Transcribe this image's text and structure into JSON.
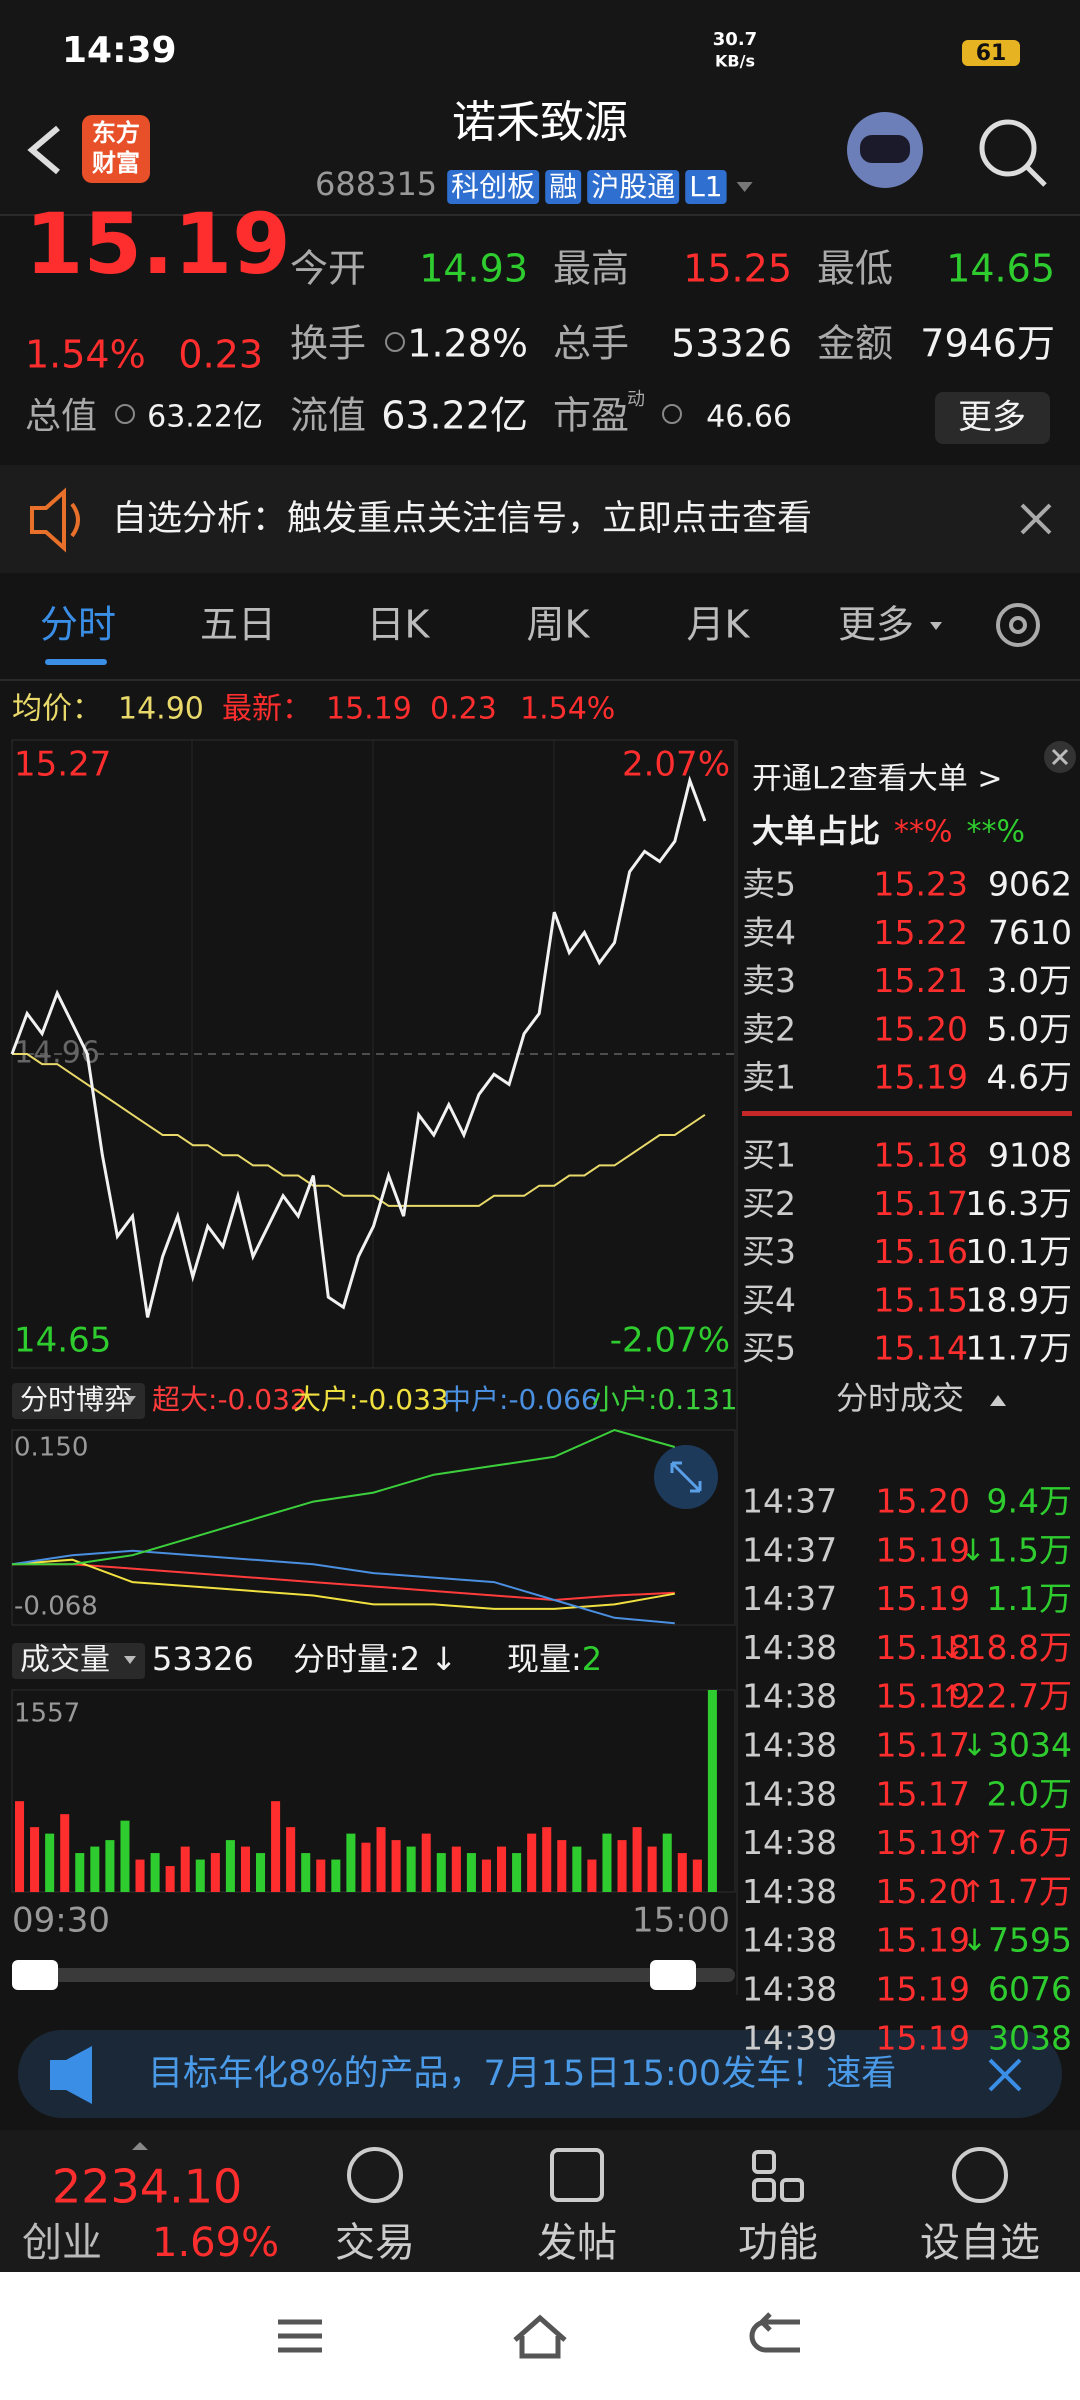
{
  "status": {
    "time": "14:39",
    "speed": "30.7",
    "speed_unit": "KB/s",
    "battery": "61"
  },
  "header": {
    "logo": "东方财富",
    "title": "诺禾致源",
    "code": "688315",
    "tags": [
      "科创板",
      "融",
      "沪股通",
      "L1"
    ]
  },
  "quote": {
    "price": "15.19",
    "change_pct": "1.54%",
    "change": "0.23",
    "fields": [
      {
        "label": "今开",
        "value": "14.93"
      },
      {
        "label": "最高",
        "value": "15.25"
      },
      {
        "label": "最低",
        "value": "14.65"
      },
      {
        "label": "换手",
        "value": "1.28%"
      },
      {
        "label": "总手",
        "value": "53326"
      },
      {
        "label": "金额",
        "value": "7946万"
      },
      {
        "label": "总值",
        "value": "63.22亿"
      },
      {
        "label": "流值",
        "value": "63.22亿"
      },
      {
        "label": "市盈",
        "value": "46.66"
      }
    ],
    "pe_badge": "动",
    "more": "更多"
  },
  "alert": {
    "text": "自选分析：触发重点关注信号，立即点击查看"
  },
  "tabs": [
    "分时",
    "五日",
    "日K",
    "周K",
    "月K",
    "更多"
  ],
  "summary": {
    "avg_label": "均价：",
    "avg": "14.90",
    "last_label": "最新：",
    "last": "15.19",
    "change": "0.23",
    "change_pct": "1.54%"
  },
  "chart_data": [
    {
      "type": "line",
      "ylim": [
        14.65,
        15.27
      ],
      "yticks": [
        15.27,
        14.65
      ],
      "y2lim": [
        -2.07,
        2.07
      ],
      "y2ticks": [
        {
          "value": 2.07,
          "label": "2.07%"
        },
        {
          "value": -2.07,
          "label": "-2.07%"
        }
      ],
      "ref": 14.96,
      "series": [
        {
          "color": "#f2f2f2",
          "values": [
            14.96,
            15.0,
            14.98,
            15.02,
            14.99,
            14.96,
            14.86,
            14.78,
            14.8,
            14.7,
            14.76,
            14.8,
            14.74,
            14.79,
            14.77,
            14.82,
            14.76,
            14.79,
            14.82,
            14.8,
            14.84,
            14.72,
            14.71,
            14.76,
            14.79,
            14.84,
            14.8,
            14.9,
            14.88,
            14.91,
            14.88,
            14.92,
            14.94,
            14.93,
            14.98,
            15.0,
            15.1,
            15.06,
            15.08,
            15.05,
            15.07,
            15.14,
            15.16,
            15.15,
            15.17,
            15.23,
            15.19
          ]
        },
        {
          "color": "#e8d96a",
          "values": [
            14.96,
            14.96,
            14.95,
            14.95,
            14.94,
            14.93,
            14.92,
            14.91,
            14.9,
            14.89,
            14.88,
            14.88,
            14.87,
            14.87,
            14.86,
            14.86,
            14.85,
            14.85,
            14.84,
            14.84,
            14.83,
            14.83,
            14.82,
            14.82,
            14.82,
            14.81,
            14.81,
            14.81,
            14.81,
            14.81,
            14.81,
            14.81,
            14.82,
            14.82,
            14.82,
            14.83,
            14.83,
            14.84,
            14.84,
            14.85,
            14.85,
            14.86,
            14.87,
            14.88,
            14.88,
            14.89,
            14.9
          ]
        }
      ]
    },
    {
      "type": "line",
      "title": "分时博弈",
      "ylim": [
        -0.068,
        0.15
      ],
      "yticks": [
        {
          "value": 0.15,
          "label": "0.150"
        },
        -0.068
      ],
      "series": [
        {
          "name": "超大:",
          "color": "#ff3b3b",
          "last": -0.032,
          "values": [
            0.0,
            0.0,
            -0.005,
            -0.01,
            -0.015,
            -0.02,
            -0.025,
            -0.03,
            -0.035,
            -0.04,
            -0.035,
            -0.032
          ]
        },
        {
          "name": "大户:",
          "color": "#f0e040",
          "last": -0.033,
          "values": [
            0.0,
            0.005,
            -0.02,
            -0.025,
            -0.03,
            -0.035,
            -0.045,
            -0.045,
            -0.05,
            -0.05,
            -0.045,
            -0.033
          ]
        },
        {
          "name": "中户:",
          "color": "#4a8fe0",
          "last": -0.066,
          "values": [
            0.0,
            0.01,
            0.015,
            0.01,
            0.005,
            0.0,
            -0.01,
            -0.015,
            -0.02,
            -0.04,
            -0.06,
            -0.066
          ]
        },
        {
          "name": "小户:",
          "color": "#3ccf3c",
          "last": 0.131,
          "values": [
            0.0,
            0.0,
            0.01,
            0.03,
            0.05,
            0.07,
            0.08,
            0.1,
            0.11,
            0.12,
            0.15,
            0.131
          ]
        }
      ]
    },
    {
      "type": "bar",
      "title": "成交量",
      "total": 53326,
      "interval_label": "分时量:2 ↓",
      "current_label": "现量:",
      "current": 2,
      "ylim": [
        0,
        1557
      ],
      "yticks": [
        1557
      ],
      "up_color": "#ff2e2e",
      "down_color": "#2ecc2e",
      "time_labels": [
        "09:30",
        "15:00"
      ],
      "values": [
        700,
        500,
        450,
        600,
        300,
        350,
        400,
        550,
        250,
        300,
        200,
        350,
        250,
        300,
        400,
        350,
        300,
        700,
        500,
        300,
        250,
        250,
        450,
        380,
        500,
        400,
        350,
        450,
        300,
        350,
        300,
        250,
        350,
        300,
        450,
        500,
        400,
        350,
        250,
        450,
        400,
        500,
        350,
        450,
        300,
        250,
        1557
      ]
    }
  ],
  "order_book": {
    "promo": "开通L2查看大单 >",
    "ratio_label": "大单占比",
    "ratio_buy": "**%",
    "ratio_sell": "**%",
    "asks": [
      {
        "label": "卖5",
        "price": "15.23",
        "volume": "9062"
      },
      {
        "label": "卖4",
        "price": "15.22",
        "volume": "7610"
      },
      {
        "label": "卖3",
        "price": "15.21",
        "volume": "3.0万"
      },
      {
        "label": "卖2",
        "price": "15.20",
        "volume": "5.0万"
      },
      {
        "label": "卖1",
        "price": "15.19",
        "volume": "4.6万"
      }
    ],
    "bids": [
      {
        "label": "买1",
        "price": "15.18",
        "volume": "9108"
      },
      {
        "label": "买2",
        "price": "15.17",
        "volume": "16.3万"
      },
      {
        "label": "买3",
        "price": "15.16",
        "volume": "10.1万"
      },
      {
        "label": "买4",
        "price": "15.15",
        "volume": "18.9万"
      },
      {
        "label": "买5",
        "price": "15.14",
        "volume": "11.7万"
      }
    ]
  },
  "trades": {
    "title": "分时成交",
    "rows": [
      {
        "time": "14:37",
        "price": "15.20",
        "volume": "9.4万"
      },
      {
        "time": "14:37",
        "price": "15.19",
        "dir": "↓",
        "volume": "1.5万"
      },
      {
        "time": "14:37",
        "price": "15.19",
        "volume": "1.1万"
      },
      {
        "time": "14:38",
        "price": "15.18",
        "dir": "↓",
        "volume": "18.8万"
      },
      {
        "time": "14:38",
        "price": "15.19",
        "dir": "↑",
        "volume": "22.7万"
      },
      {
        "time": "14:38",
        "price": "15.17",
        "dir": "↓",
        "volume": "3034"
      },
      {
        "time": "14:38",
        "price": "15.17",
        "volume": "2.0万"
      },
      {
        "time": "14:38",
        "price": "15.19",
        "dir": "↑",
        "volume": "7.6万"
      },
      {
        "time": "14:38",
        "price": "15.20",
        "dir": "↑",
        "volume": "1.7万"
      },
      {
        "time": "14:38",
        "price": "15.19",
        "dir": "↓",
        "volume": "7595"
      },
      {
        "time": "14:38",
        "price": "15.19",
        "volume": "6076"
      },
      {
        "time": "14:39",
        "price": "15.19",
        "volume": "3038"
      }
    ]
  },
  "ad": {
    "text": "目标年化8%的产品，7月15日15:00发车！速看"
  },
  "bottom": {
    "index_value": "2234.10",
    "index_name": "创业",
    "index_pct": "1.69%",
    "nav": [
      "交易",
      "发帖",
      "功能",
      "设自选"
    ]
  }
}
